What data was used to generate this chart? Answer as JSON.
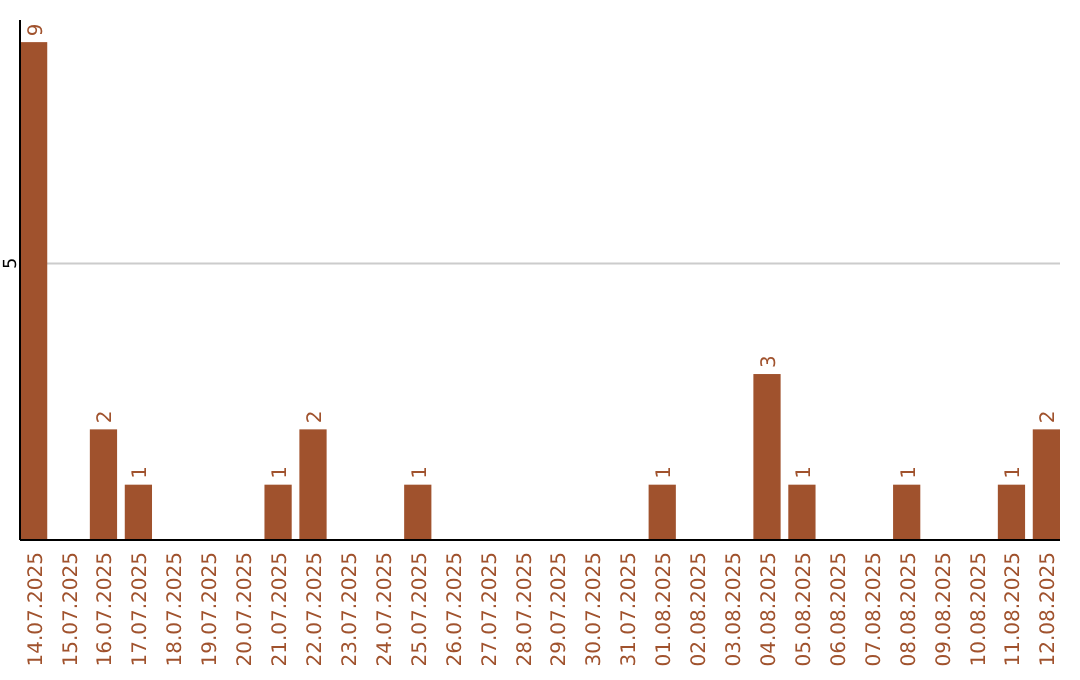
{
  "chart_data": {
    "type": "bar",
    "categories": [
      "14.07.2025",
      "15.07.2025",
      "16.07.2025",
      "17.07.2025",
      "18.07.2025",
      "19.07.2025",
      "20.07.2025",
      "21.07.2025",
      "22.07.2025",
      "23.07.2025",
      "24.07.2025",
      "25.07.2025",
      "26.07.2025",
      "27.07.2025",
      "28.07.2025",
      "29.07.2025",
      "30.07.2025",
      "31.07.2025",
      "01.08.2025",
      "02.08.2025",
      "03.08.2025",
      "04.08.2025",
      "05.08.2025",
      "06.08.2025",
      "07.08.2025",
      "08.08.2025",
      "09.08.2025",
      "10.08.2025",
      "11.08.2025",
      "12.08.2025"
    ],
    "values": [
      9,
      0,
      2,
      1,
      0,
      0,
      0,
      1,
      2,
      0,
      0,
      1,
      0,
      0,
      0,
      0,
      0,
      0,
      1,
      0,
      0,
      3,
      1,
      0,
      0,
      1,
      0,
      0,
      1,
      2
    ],
    "value_labels": [
      "9",
      null,
      "2",
      "1",
      null,
      null,
      null,
      "1",
      "2",
      null,
      null,
      "1",
      null,
      null,
      null,
      null,
      null,
      null,
      "1",
      null,
      null,
      "3",
      "1",
      null,
      null,
      "1",
      null,
      null,
      "1",
      "2"
    ],
    "color": "#a0522d",
    "ylim": [
      0,
      9.4
    ],
    "yticks": [
      5
    ],
    "grid": "y"
  }
}
